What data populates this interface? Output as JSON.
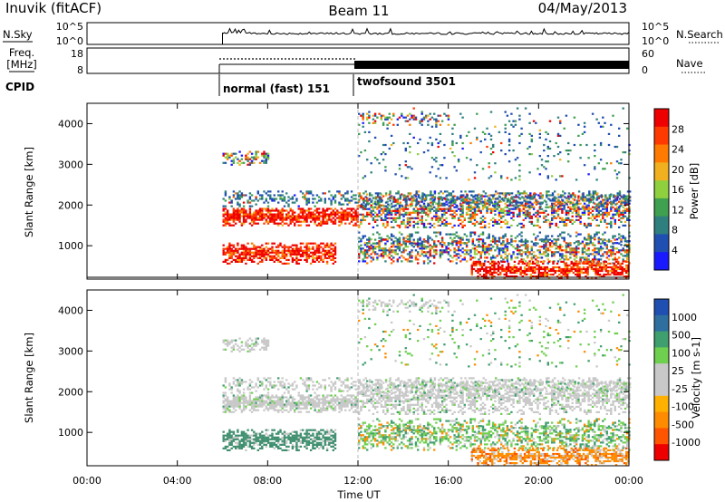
{
  "header": {
    "station": "Inuvik (fitACF)",
    "beam": "Beam 11",
    "date": "04/May/2013"
  },
  "side_labels": {
    "nsky": "N.Sky",
    "nsearch": "N.Search",
    "freq_line1": "Freq.",
    "freq_line2": "[MHz]",
    "nave": "Nave",
    "cpid": "CPID"
  },
  "noise_panel": {
    "left_ticks": [
      "10^5",
      "10^0"
    ],
    "right_ticks": [
      "10^5",
      "10^0"
    ]
  },
  "freq_panel": {
    "left_ticks": [
      "18",
      "8"
    ],
    "right_ticks": [
      "60",
      "0"
    ]
  },
  "cpid_segments": [
    {
      "label": "normal (fast) 151",
      "start_hour": 6,
      "end_hour": 12
    },
    {
      "label": "twofsound 3501",
      "start_hour": 12,
      "end_hour": 24
    }
  ],
  "colors": {
    "power_scale": [
      "#1a1aff",
      "#1f4fb0",
      "#2f7f7f",
      "#3fa04f",
      "#8fd03f",
      "#f0b020",
      "#ff7a00",
      "#ff3a00",
      "#ee0000"
    ],
    "velocity_scale": [
      "#ee0000",
      "#ff5500",
      "#ff8c00",
      "#ffb000",
      "#c8c8c8",
      "#c8c8c8",
      "#6fd04f",
      "#3f9f6f",
      "#2f6f9f",
      "#1f4fb0"
    ]
  },
  "chart_data": [
    {
      "type": "heatmap",
      "name_panel": "power",
      "ylabel": "Slant Range [km]",
      "colorbar_label": "Power [dB]",
      "colorbar_ticks": [
        "28",
        "24",
        "20",
        "16",
        "12",
        "8",
        "4"
      ],
      "ylim": [
        180,
        4500
      ],
      "xlim": [
        0,
        24
      ],
      "yticks": [
        "1000",
        "2000",
        "3000",
        "4000"
      ]
    },
    {
      "type": "heatmap",
      "name_panel": "velocity",
      "ylabel": "Slant Range [km]",
      "colorbar_label": "Velocity [m s-1]",
      "colorbar_ticks": [
        "1000",
        "500",
        "100",
        "25",
        "-25",
        "-100",
        "-500",
        "-1000"
      ],
      "ylim": [
        180,
        4500
      ],
      "xlim": [
        0,
        24
      ],
      "yticks": [
        "1000",
        "2000",
        "3000",
        "4000"
      ]
    }
  ],
  "time_axis": {
    "tick_labels": [
      "00:00",
      "04:00",
      "08:00",
      "12:00",
      "16:00",
      "20:00",
      "00:00"
    ],
    "label": "Time UT"
  }
}
